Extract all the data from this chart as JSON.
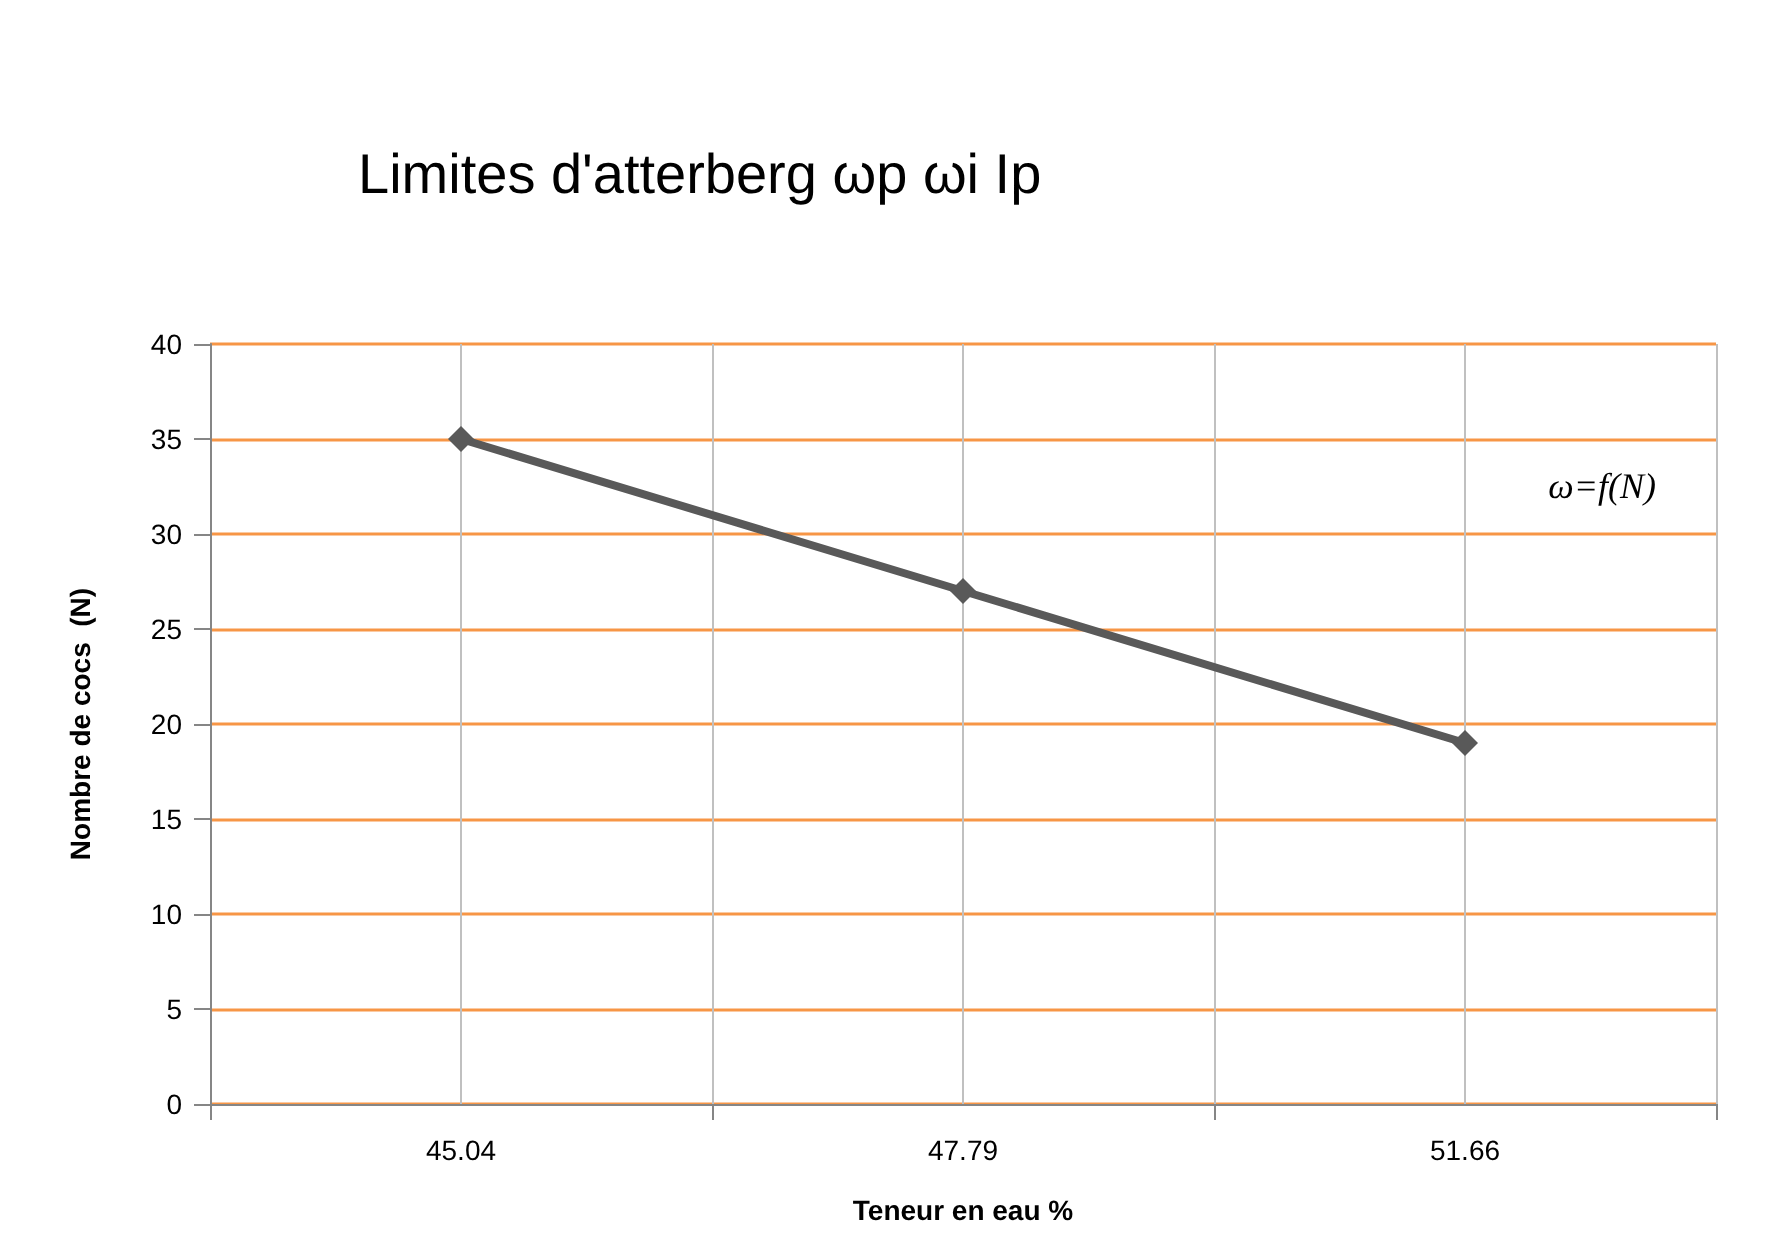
{
  "chart_data": {
    "type": "line",
    "title": "Limites d'atterberg ωp ωi Ip",
    "xlabel": "Teneur en eau %",
    "ylabel": "Nombre de cocs  (N)",
    "categories": [
      "45.04",
      "47.79",
      "51.66"
    ],
    "series": [
      {
        "color": "#595959",
        "values": [
          35,
          27,
          19
        ]
      }
    ],
    "ylim": [
      0,
      40
    ],
    "yticks": [
      0,
      5,
      10,
      15,
      20,
      25,
      30,
      35,
      40
    ],
    "grid": true,
    "marker": "diamond",
    "line_style": "solid",
    "annotations": [
      "ω=f(N)"
    ]
  }
}
